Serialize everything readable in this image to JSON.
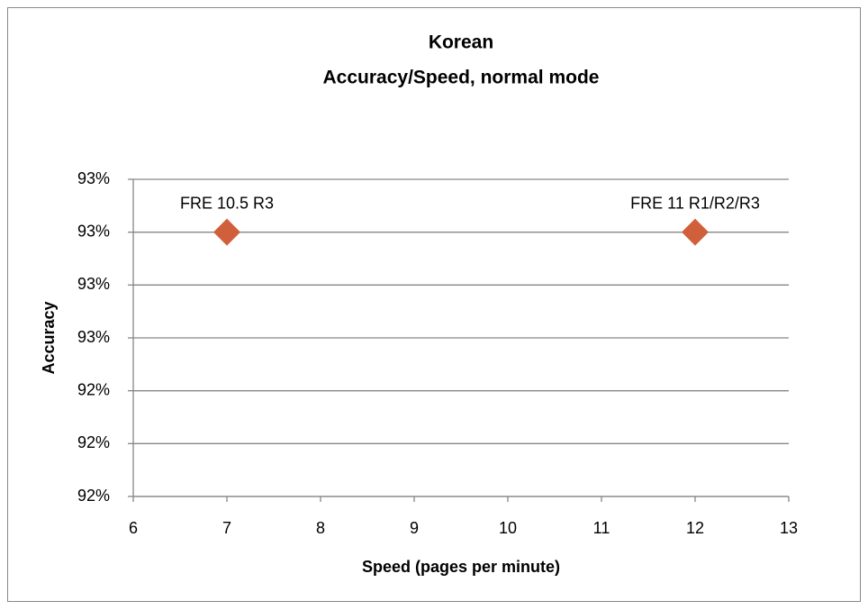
{
  "chart_data": {
    "type": "scatter",
    "title": "Korean",
    "subtitle": "Accuracy/Speed, normal mode",
    "x_label": "Speed (pages per minute)",
    "y_label": "Accuracy",
    "series": [
      {
        "color": "#d0603c",
        "x": [
          7,
          12
        ],
        "values": [
          93.0,
          93.0
        ],
        "point_labels": [
          "FRE 10.5 R3",
          "FRE 11 R1/R2/R3"
        ]
      }
    ],
    "xlim": [
      6,
      13
    ],
    "xticks": [
      6,
      7,
      8,
      9,
      10,
      11,
      12,
      13
    ],
    "ylim": [
      92.0,
      93.2
    ],
    "yticks": [
      {
        "value": 92.0,
        "label": "92%"
      },
      {
        "value": 92.2,
        "label": "92%"
      },
      {
        "value": 92.4,
        "label": "92%"
      },
      {
        "value": 92.6,
        "label": "93%"
      },
      {
        "value": 92.8,
        "label": "93%"
      },
      {
        "value": 93.0,
        "label": "93%"
      },
      {
        "value": 93.2,
        "label": "93%"
      }
    ],
    "grid": true
  }
}
